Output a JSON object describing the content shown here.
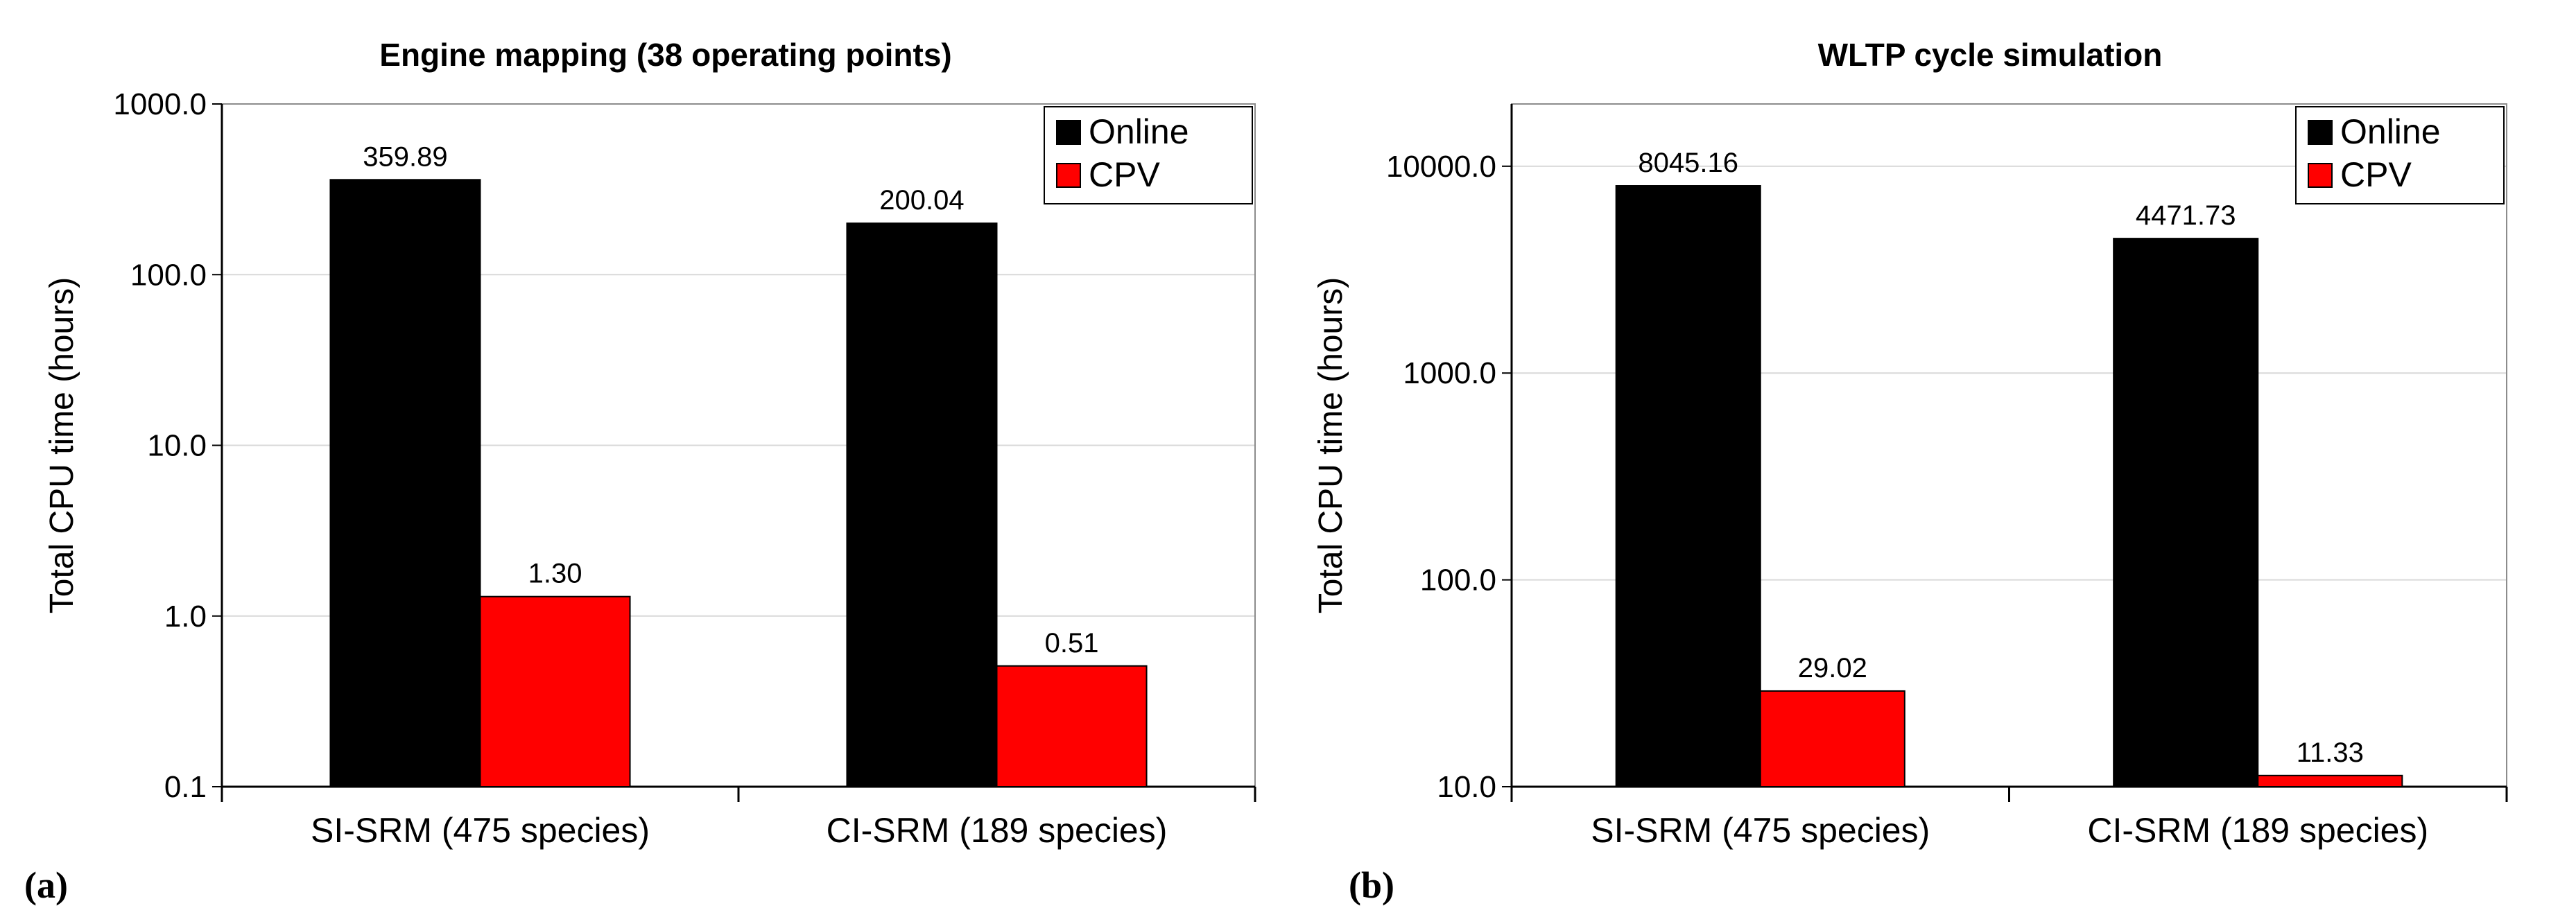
{
  "chart_data": [
    {
      "type": "bar",
      "panel_label": "(a)",
      "title": "Engine mapping (38 operating points)",
      "ylabel": "Total CPU time (hours)",
      "xlabel": "",
      "yscale": "log",
      "ylim": [
        0.1,
        1000
      ],
      "yticks": [
        0.1,
        1,
        10,
        100,
        1000
      ],
      "ytick_labels": [
        "0.1",
        "1.0",
        "10.0",
        "100.0",
        "1000.0"
      ],
      "categories": [
        "SI-SRM (475 species)",
        "CI-SRM (189 species)"
      ],
      "series": [
        {
          "name": "Online",
          "color": "#000000",
          "values": [
            359.89,
            200.04
          ],
          "labels": [
            "359.89",
            "200.04"
          ]
        },
        {
          "name": "CPV",
          "color": "#ff0000",
          "values": [
            1.3,
            0.51
          ],
          "labels": [
            "1.30",
            "0.51"
          ]
        }
      ],
      "grid": true,
      "legend_position": "top-right"
    },
    {
      "type": "bar",
      "panel_label": "(b)",
      "title": "WLTP cycle simulation",
      "ylabel": "Total CPU time (hours)",
      "xlabel": "",
      "yscale": "log",
      "ylim": [
        10,
        20000
      ],
      "yticks": [
        10,
        100,
        1000,
        10000
      ],
      "ytick_labels": [
        "10.0",
        "100.0",
        "1000.0",
        "10000.0"
      ],
      "categories": [
        "SI-SRM (475 species)",
        "CI-SRM (189 species)"
      ],
      "series": [
        {
          "name": "Online",
          "color": "#000000",
          "values": [
            8045.16,
            4471.73
          ],
          "labels": [
            "8045.16",
            "4471.73"
          ]
        },
        {
          "name": "CPV",
          "color": "#ff0000",
          "values": [
            29.02,
            11.33
          ],
          "labels": [
            "29.02",
            "11.33"
          ]
        }
      ],
      "grid": true,
      "legend_position": "top-right"
    }
  ]
}
